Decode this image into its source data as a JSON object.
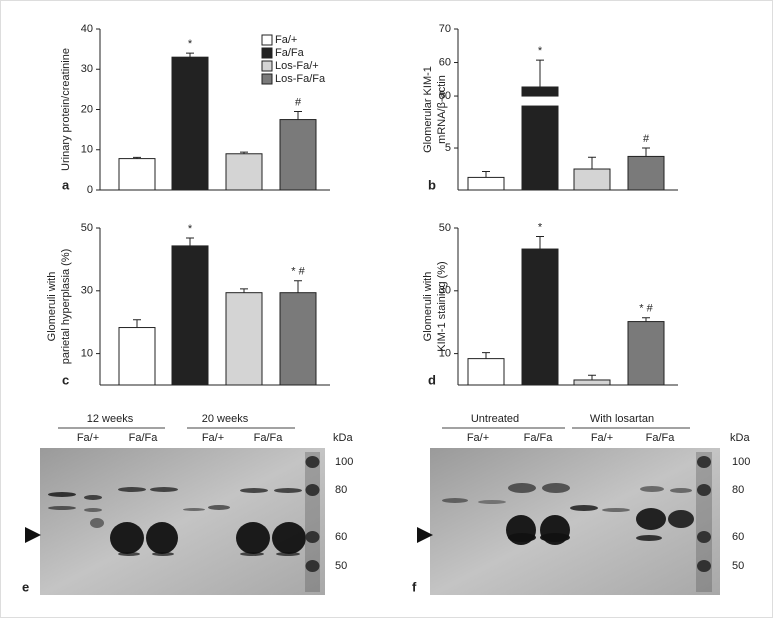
{
  "chart_data": [
    {
      "type": "bar",
      "panel": "a",
      "ylabel": [
        "Urinary protein/creatinine"
      ],
      "categories": [
        "Fa/+",
        "Fa/Fa",
        "Los-Fa/+",
        "Los-Fa/Fa"
      ],
      "colors": [
        "#ffffff",
        "#222222",
        "#d4d4d4",
        "#7a7a7a"
      ],
      "values": [
        7.8,
        33,
        9,
        17.5
      ],
      "errors": [
        0.3,
        1,
        0.4,
        2
      ],
      "annotations": [
        null,
        "*",
        null,
        "#"
      ],
      "ylim": [
        0,
        40
      ],
      "yticks": [
        0,
        10,
        20,
        30,
        40
      ],
      "legend": "top-right"
    },
    {
      "type": "bar",
      "panel": "b",
      "ylabel": [
        "Glomerular KIM-1",
        "mRNA/β-actin"
      ],
      "colors": [
        "#ffffff",
        "#222222",
        "#d4d4d4",
        "#7a7a7a"
      ],
      "values": [
        1.5,
        52.7,
        2.5,
        4
      ],
      "errors": [
        0.7,
        8,
        1.4,
        1
      ],
      "annotations": [
        null,
        "*",
        null,
        "#"
      ],
      "ylim": [
        0,
        70
      ],
      "ybreak": [
        10,
        50
      ],
      "yticks": [
        5,
        50,
        60,
        70
      ]
    },
    {
      "type": "bar",
      "panel": "c",
      "ylabel": [
        "Glomeruli with",
        "parietal hyperplasia (%)"
      ],
      "colors": [
        "#ffffff",
        "#222222",
        "#d4d4d4",
        "#7a7a7a"
      ],
      "values": [
        18.3,
        44.3,
        29.4,
        29.4
      ],
      "errors": [
        2.5,
        2.5,
        1.2,
        3.8
      ],
      "annotations": [
        null,
        "*",
        null,
        "* #"
      ],
      "ylim": [
        0,
        50
      ],
      "yticks": [
        10,
        30,
        50
      ]
    },
    {
      "type": "bar",
      "panel": "d",
      "ylabel": [
        "Glomeruli with",
        "KIM-1 staining (%)"
      ],
      "colors": [
        "#ffffff",
        "#222222",
        "#d4d4d4",
        "#7a7a7a"
      ],
      "values": [
        8.4,
        43.3,
        1.6,
        20.2
      ],
      "errors": [
        1.9,
        4,
        1.5,
        1.2
      ],
      "annotations": [
        null,
        "*",
        null,
        "* #"
      ],
      "ylim": [
        0,
        50
      ],
      "yticks": [
        10,
        30,
        50
      ]
    }
  ],
  "blots": [
    {
      "panel": "e",
      "groups": [
        "12 weeks",
        "20 weeks"
      ],
      "lanes": [
        "Fa/+",
        "Fa/Fa",
        "Fa/+",
        "Fa/Fa"
      ],
      "unit": "kDa",
      "markers": [
        100,
        80,
        60,
        50
      ]
    },
    {
      "panel": "f",
      "groups": [
        "Untreated",
        "With losartan"
      ],
      "lanes": [
        "Fa/+",
        "Fa/Fa",
        "Fa/+",
        "Fa/Fa"
      ],
      "unit": "kDa",
      "markers": [
        100,
        80,
        60,
        50
      ]
    }
  ]
}
